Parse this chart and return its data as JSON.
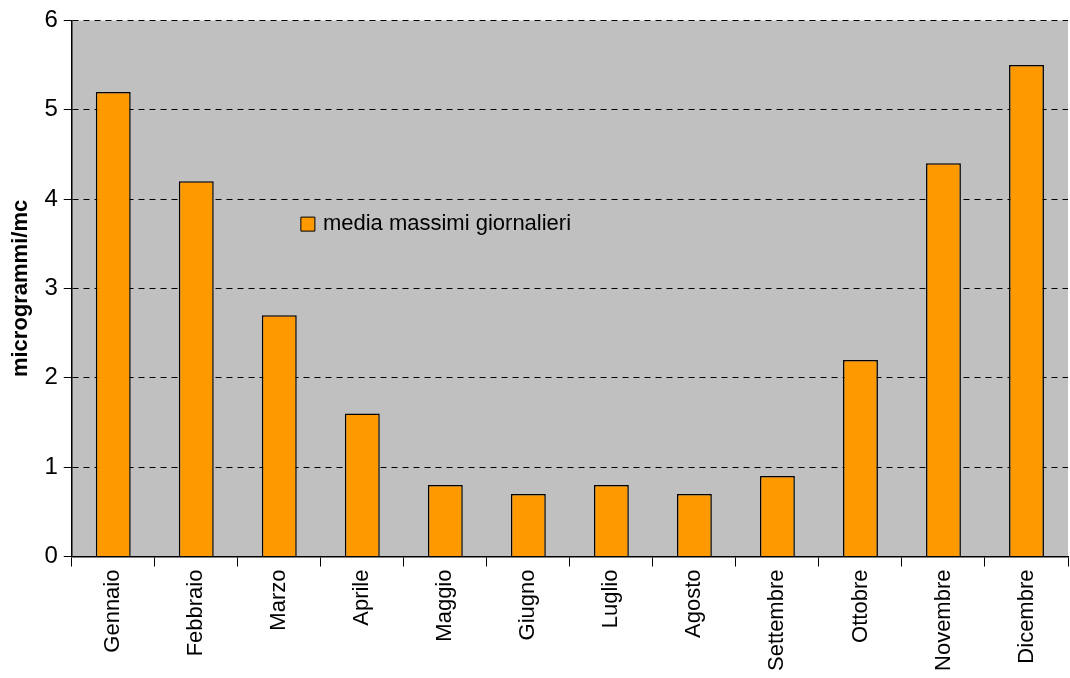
{
  "chart_data": {
    "type": "bar",
    "ylabel": "microgrammi/mc",
    "categories": [
      "Gennaio",
      "Febbraio",
      "Marzo",
      "Aprile",
      "Maggio",
      "Giugno",
      "Luglio",
      "Agosto",
      "Settembre",
      "Ottobre",
      "Novembre",
      "Dicembre"
    ],
    "series": [
      {
        "name": "media massimi giornalieri",
        "color": "#ff9900",
        "values": [
          5.2,
          4.2,
          2.7,
          1.6,
          0.8,
          0.7,
          0.8,
          0.7,
          0.9,
          2.2,
          4.4,
          5.5
        ]
      }
    ],
    "ylim": [
      0,
      6
    ],
    "yticks": [
      0,
      1,
      2,
      3,
      4,
      5,
      6
    ],
    "grid": "y",
    "legend": "top left"
  }
}
